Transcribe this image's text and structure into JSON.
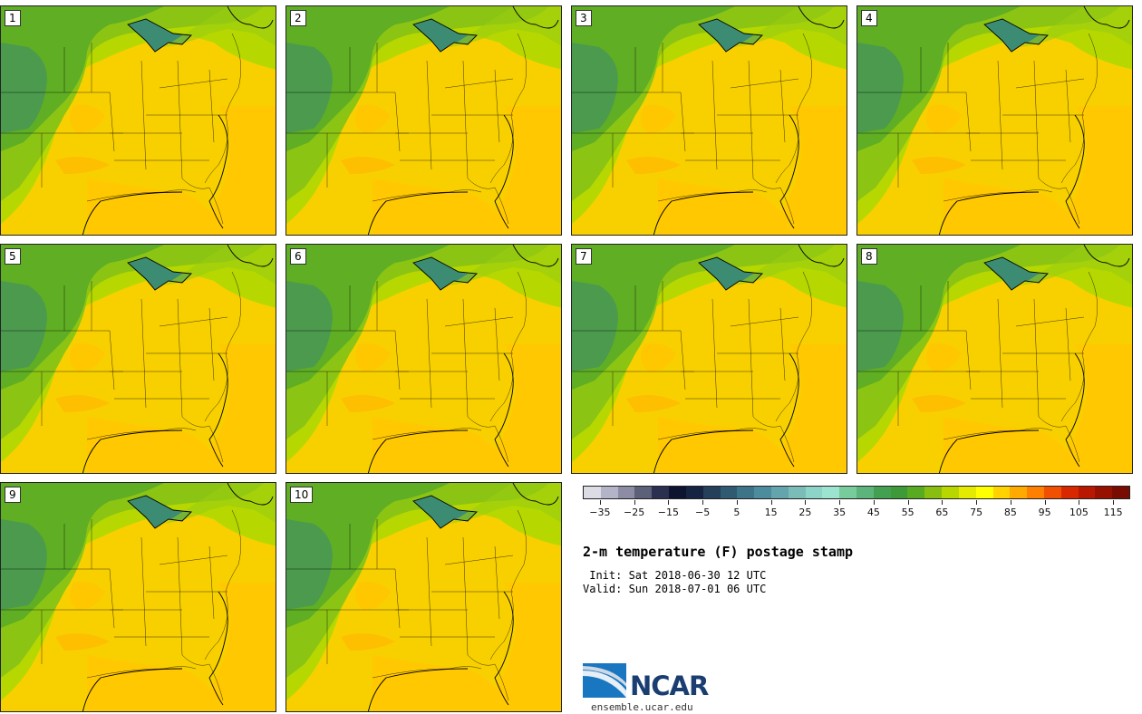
{
  "product_title": "2-m temperature (F) postage stamp",
  "init_line": " Init: Sat 2018-06-30 12 UTC",
  "valid_line": "Valid: Sun 2018-07-01 06 UTC",
  "members": [
    "1",
    "2",
    "3",
    "4",
    "5",
    "6",
    "7",
    "8",
    "9",
    "10"
  ],
  "colorbar": {
    "colors": [
      "#dcdce4",
      "#b4b4c8",
      "#8c8ca4",
      "#5c6078",
      "#2c3050",
      "#0c1430",
      "#142442",
      "#24405a",
      "#305a72",
      "#3e7488",
      "#4c8c9c",
      "#64a4ac",
      "#7cbcb8",
      "#8cd4c8",
      "#9ce4d0",
      "#78cc9c",
      "#5cb47c",
      "#42a050",
      "#3e9a38",
      "#58aa20",
      "#88be10",
      "#b8d600",
      "#e4ea00",
      "#ffff00",
      "#ffd200",
      "#ffaa00",
      "#ff8000",
      "#f05000",
      "#d82800",
      "#b81800",
      "#981000",
      "#780c00"
    ],
    "tick_labels": [
      "−35",
      "−25",
      "−15",
      "−5",
      "5",
      "15",
      "25",
      "35",
      "45",
      "55",
      "65",
      "75",
      "85",
      "95",
      "105",
      "115"
    ],
    "min": -40,
    "max": 120
  },
  "logo": {
    "text": "NCAR",
    "site": "ensemble.ucar.edu"
  }
}
